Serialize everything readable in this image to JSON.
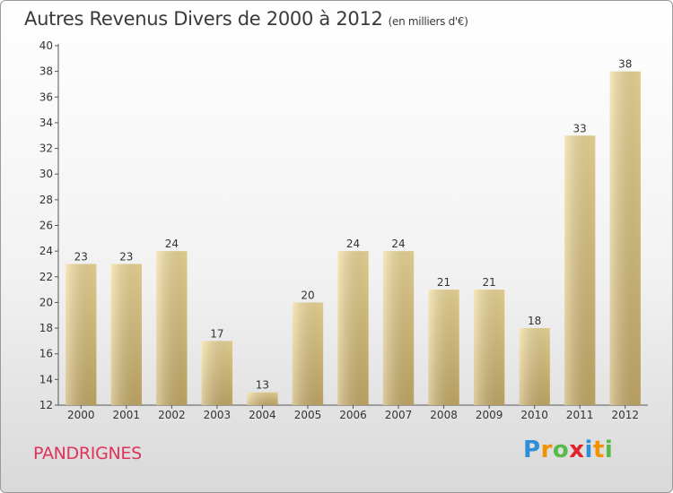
{
  "header": {
    "title": "Autres Revenus Divers de 2000 à 2012",
    "subtitle": "(en milliers d'€)"
  },
  "footer": {
    "commune": "PANDRIGNES",
    "logo": {
      "letters": [
        "P",
        "r",
        "o",
        "x",
        "i",
        "t",
        "i"
      ],
      "colors": [
        "#2f8fd6",
        "#f29200",
        "#56b948",
        "#e2232a",
        "#2f8fd6",
        "#f29200",
        "#56b948"
      ]
    }
  },
  "chart_data": {
    "type": "bar",
    "categories": [
      "2000",
      "2001",
      "2002",
      "2003",
      "2004",
      "2005",
      "2006",
      "2007",
      "2008",
      "2009",
      "2010",
      "2011",
      "2012"
    ],
    "values": [
      23,
      23,
      24,
      17,
      13,
      20,
      24,
      24,
      21,
      21,
      18,
      33,
      38
    ],
    "title": "Autres Revenus Divers de 2000 à 2012",
    "subtitle": "(en milliers d'€)",
    "ylim": [
      12,
      40
    ],
    "yticks": [
      12,
      14,
      16,
      18,
      20,
      22,
      24,
      26,
      28,
      30,
      32,
      34,
      36,
      38,
      40
    ],
    "grid": false,
    "colors": {
      "bar_light": "#f2dc9a",
      "bar_dark": "#c8ad68",
      "axis": "#555555"
    }
  }
}
